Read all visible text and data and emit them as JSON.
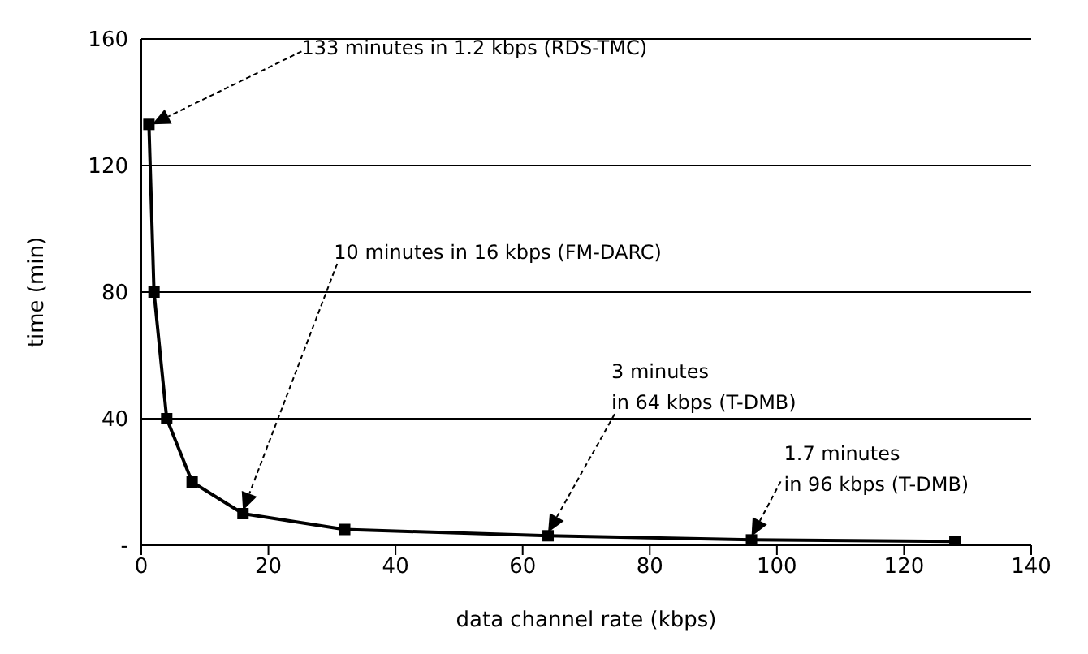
{
  "chart_data": {
    "type": "line",
    "xlabel": "data channel rate (kbps)",
    "ylabel": "time (min)",
    "x": [
      1.2,
      2,
      4,
      8,
      16,
      32,
      64,
      96,
      128
    ],
    "series": [
      {
        "color": "#000000",
        "values": [
          133,
          80,
          40,
          20,
          10,
          5,
          3,
          1.7,
          1.2
        ]
      }
    ],
    "xlim": [
      0,
      140
    ],
    "xticks": [
      0,
      20,
      40,
      60,
      80,
      100,
      120,
      140
    ],
    "ylim": [
      0,
      160
    ],
    "yticks": [
      {
        "value": 0,
        "label": "-"
      },
      40,
      80,
      120,
      160
    ],
    "grid": "y",
    "legend": false,
    "marker": "square",
    "line_style": "solid",
    "annotations": [
      "133 minutes in 1.2 kbps (RDS-TMC)",
      "10 minutes in 16 kbps (FM-DARC)",
      "3 minutes\nin 64 kbps (T-DMB)",
      "1.7 minutes\nin 96 kbps (T-DMB)"
    ]
  }
}
